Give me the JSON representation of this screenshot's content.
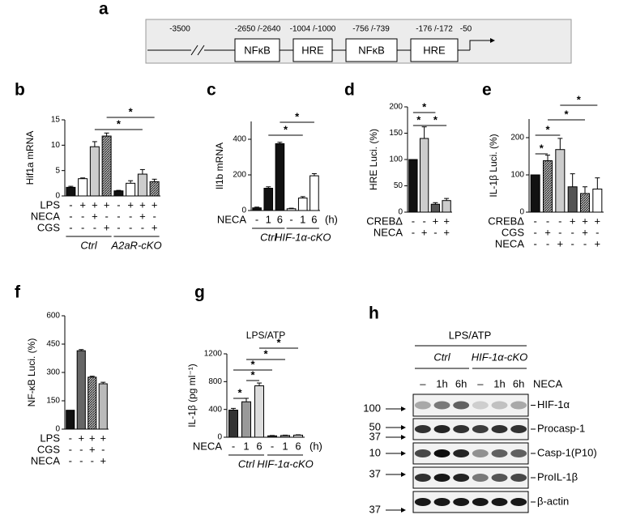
{
  "diagram": {
    "panel": "a",
    "positions": [
      "-3500",
      "-2650 /-2640",
      "-1004 /-1000",
      "-756 /-739",
      "-176 /-172",
      "-50"
    ],
    "elements": [
      "NFκB",
      "HRE",
      "NFκB",
      "HRE"
    ]
  },
  "chart_data": [
    {
      "type": "bar",
      "panel": "b",
      "ylabel": "Hif1a mRNA",
      "ylim": [
        0,
        15
      ],
      "yticks": [
        0,
        5,
        10,
        15
      ],
      "values": [
        1.7,
        3.4,
        9.7,
        11.8,
        1.0,
        2.5,
        4.3,
        2.8
      ],
      "errors": [
        0.2,
        0.15,
        1.0,
        0.6,
        0.1,
        0.5,
        0.9,
        0.5
      ],
      "colors": [
        "#111111",
        "#ffffff",
        "#cccccc",
        "hatched",
        "#111111",
        "#ffffff",
        "#cccccc",
        "hatched"
      ],
      "conditions": [
        {
          "label": "LPS",
          "marks": [
            "-",
            "+",
            "+",
            "+",
            "-",
            "+",
            "+",
            "+"
          ]
        },
        {
          "label": "NECA",
          "marks": [
            "-",
            "-",
            "+",
            "-",
            "-",
            "-",
            "+",
            "-"
          ]
        },
        {
          "label": "CGS",
          "marks": [
            "-",
            "-",
            "-",
            "+",
            "-",
            "-",
            "-",
            "+"
          ]
        }
      ],
      "groups": [
        "Ctrl",
        "A2aR-cKO"
      ],
      "significance": [
        "*",
        "*"
      ]
    },
    {
      "type": "bar",
      "panel": "c",
      "ylabel": "Il1b mRNA",
      "ylim": [
        0,
        500
      ],
      "yticks": [
        0,
        200,
        400
      ],
      "values": [
        15,
        125,
        375,
        10,
        70,
        195
      ],
      "errors": [
        4,
        8,
        8,
        3,
        8,
        12
      ],
      "colors": [
        "#111111",
        "#111111",
        "#111111",
        "#ffffff",
        "#ffffff",
        "#ffffff"
      ],
      "conditions": [
        {
          "label": "NECA",
          "marks": [
            "-",
            "1",
            "6",
            "-",
            "1",
            "6"
          ],
          "unit": "(h)"
        }
      ],
      "groups": [
        "Ctrl",
        "HIF-1α-cKO"
      ],
      "significance": [
        "*",
        "*"
      ]
    },
    {
      "type": "bar",
      "panel": "d",
      "ylabel": "HRE Luci. (%)",
      "ylim": [
        0,
        200
      ],
      "yticks": [
        0,
        50,
        100,
        150,
        200
      ],
      "values": [
        100,
        140,
        15,
        22
      ],
      "errors": [
        0,
        22,
        3,
        4
      ],
      "colors": [
        "#111111",
        "#cccccc",
        "#555555",
        "#cccccc"
      ],
      "conditions": [
        {
          "label": "CREBΔ",
          "marks": [
            "-",
            "-",
            "+",
            "+"
          ]
        },
        {
          "label": "NECA",
          "marks": [
            "-",
            "+",
            "-",
            "+"
          ]
        }
      ],
      "significance": [
        "*",
        "*",
        "*"
      ]
    },
    {
      "type": "bar",
      "panel": "e",
      "ylabel": "IL-1β Luci. (%)",
      "ylim": [
        0,
        250
      ],
      "yticks": [
        0,
        100,
        200
      ],
      "values": [
        100,
        138,
        168,
        68,
        50,
        62
      ],
      "errors": [
        0,
        15,
        30,
        35,
        18,
        30
      ],
      "colors": [
        "#111111",
        "hatched",
        "#cccccc",
        "#555555",
        "hatched",
        "#ffffff"
      ],
      "conditions": [
        {
          "label": "CREBΔ",
          "marks": [
            "-",
            "-",
            "-",
            "+",
            "+",
            "+"
          ]
        },
        {
          "label": "CGS",
          "marks": [
            "-",
            "+",
            "-",
            "-",
            "+",
            "-"
          ]
        },
        {
          "label": "NECA",
          "marks": [
            "-",
            "-",
            "+",
            "-",
            "-",
            "+"
          ]
        }
      ],
      "significance": [
        "*",
        "*",
        "*",
        "*"
      ]
    },
    {
      "type": "bar",
      "panel": "f",
      "ylabel": "NF-κB Luci. (%)",
      "ylim": [
        0,
        600
      ],
      "yticks": [
        0,
        150,
        300,
        450,
        600
      ],
      "values": [
        100,
        415,
        275,
        240
      ],
      "errors": [
        0,
        6,
        5,
        8
      ],
      "colors": [
        "#111111",
        "#666666",
        "hatched",
        "#bbbbbb"
      ],
      "conditions": [
        {
          "label": "LPS",
          "marks": [
            "-",
            "+",
            "+",
            "+"
          ]
        },
        {
          "label": "CGS",
          "marks": [
            "-",
            "-",
            "+",
            "-"
          ]
        },
        {
          "label": "NECA",
          "marks": [
            "-",
            "-",
            "-",
            "+"
          ]
        }
      ],
      "significance": []
    },
    {
      "type": "bar",
      "panel": "g",
      "title": "LPS/ATP",
      "ylabel": "IL-1β (pg ml⁻¹)",
      "ylim": [
        0,
        1200
      ],
      "yticks": [
        0,
        400,
        800,
        1200
      ],
      "values": [
        390,
        510,
        740,
        20,
        25,
        30
      ],
      "errors": [
        25,
        50,
        40,
        5,
        5,
        5
      ],
      "colors": [
        "#333333",
        "#999999",
        "#dddddd",
        "#333333",
        "#999999",
        "#dddddd"
      ],
      "conditions": [
        {
          "label": "NECA",
          "marks": [
            "-",
            "1",
            "6",
            "-",
            "1",
            "6"
          ],
          "unit": "(h)"
        }
      ],
      "groups": [
        "Ctrl",
        "HIF-1α-cKO"
      ],
      "significance": [
        "*",
        "*",
        "*",
        "*",
        "*"
      ]
    }
  ],
  "blot": {
    "panel": "h",
    "treatment": "LPS/ATP",
    "groups": [
      "Ctrl",
      "HIF-1α-cKO"
    ],
    "lanes": [
      "–",
      "1h",
      "6h",
      "–",
      "1h",
      "6h"
    ],
    "lane_factor": "NECA",
    "markers": [
      100,
      50,
      37,
      10,
      37,
      37
    ],
    "bands": [
      "HIF-1α",
      "Procasp-1",
      "Casp-1(P10)",
      "ProIL-1β",
      "β-actin"
    ]
  }
}
